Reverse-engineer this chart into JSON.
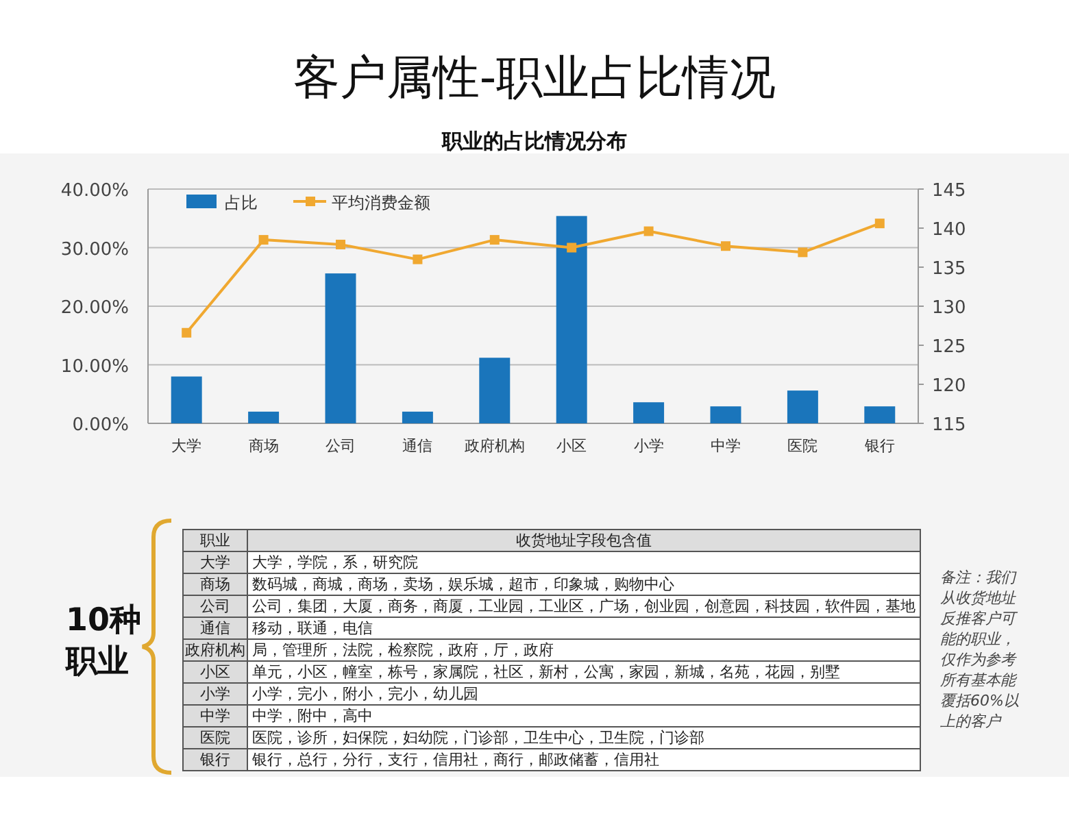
{
  "chart_data": {
    "type": "bar",
    "title": "客户属性-职业占比情况",
    "subtitle": "职业的占比情况分布",
    "categories": [
      "大学",
      "商场",
      "公司",
      "通信",
      "政府机构",
      "小区",
      "小学",
      "中学",
      "医院",
      "银行"
    ],
    "series": [
      {
        "name": "占比",
        "color": "#1a75bb",
        "values": [
          8.0,
          2.0,
          25.6,
          2.0,
          11.2,
          35.4,
          3.6,
          2.9,
          5.6,
          2.9
        ]
      },
      {
        "name": "平均消费金额",
        "type": "line",
        "axis": "y2",
        "color": "#f0a830",
        "marker": "square",
        "values": [
          126.6,
          138.5,
          137.9,
          136.0,
          138.5,
          137.5,
          139.6,
          137.7,
          136.9,
          140.6
        ]
      }
    ],
    "ylim": [
      0,
      40
    ],
    "yticks": [
      {
        "value": 0,
        "label": "0.00%"
      },
      {
        "value": 10,
        "label": "10.00%"
      },
      {
        "value": 20,
        "label": "20.00%"
      },
      {
        "value": 30,
        "label": "30.00%"
      },
      {
        "value": 40,
        "label": "40.00%"
      }
    ],
    "y2lim": [
      115,
      145
    ],
    "y2ticks": [
      115,
      120,
      125,
      130,
      135,
      140,
      145
    ],
    "grid": "y",
    "legend": "top left",
    "annotations": [
      "10种职业",
      "职业",
      "收货地址字段包含值",
      "大学，学院，系，研究院",
      "数码城，商城，商场，卖场，娱乐城，超市，印象城，购物中心",
      "公司，集团，大厦，商务，商厦，工业园，工业区，广场，创业园，创意园，科技园，软件园，基地",
      "移动，联通，电信",
      "局，管理所，法院，检察院，政府，厅，政府",
      "单元，小区，幢室，栋号，家属院，社区，新村，公寓，家园，新城，名苑，花园，别墅",
      "小学，完小，附小，完小，幼儿园",
      "中学，附中，高中",
      "医院，诊所，妇保院，妇幼院，门诊部，卫生中心，卫生院，门诊部",
      "银行，总行，分行，支行，信用社，商行，邮政储蓄，信用社",
      "备注：我们从收货地址反推客户可能的职业，仅作为参考所有基本能覆括60%以上的客户"
    ]
  }
}
